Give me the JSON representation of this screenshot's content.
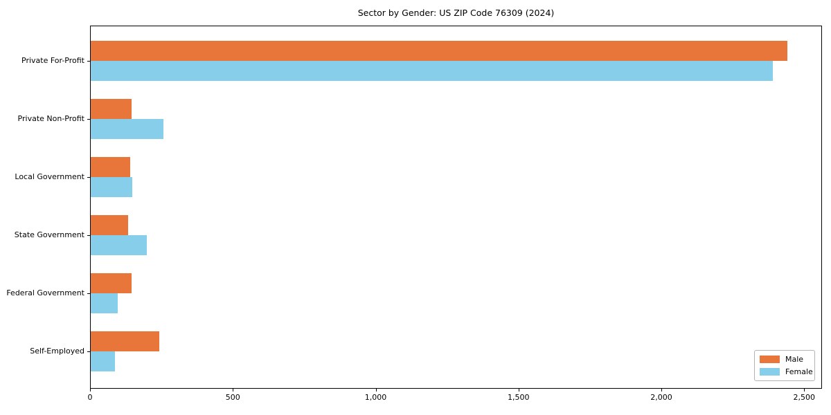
{
  "chart_data": {
    "type": "bar",
    "orientation": "horizontal",
    "title": "Sector by Gender: US ZIP Code 76309 (2024)",
    "categories": [
      "Private For-Profit",
      "Private Non-Profit",
      "Local Government",
      "State Government",
      "Federal Government",
      "Self-Employed"
    ],
    "series": [
      {
        "name": "Male",
        "color": "#e8763a",
        "values": [
          2440,
          143,
          137,
          131,
          144,
          240
        ]
      },
      {
        "name": "Female",
        "color": "#87ceeb",
        "values": [
          2390,
          254,
          146,
          196,
          95,
          84
        ]
      }
    ],
    "xlabel": "",
    "ylabel": "",
    "xlim": [
      0,
      2560
    ],
    "x_ticks": [
      0,
      500,
      1000,
      1500,
      2000,
      2500
    ],
    "x_tick_labels": [
      "0",
      "500",
      "1,000",
      "1,500",
      "2,000",
      "2,500"
    ],
    "grid": false,
    "legend": {
      "position": "lower right",
      "entries": [
        "Male",
        "Female"
      ]
    }
  }
}
